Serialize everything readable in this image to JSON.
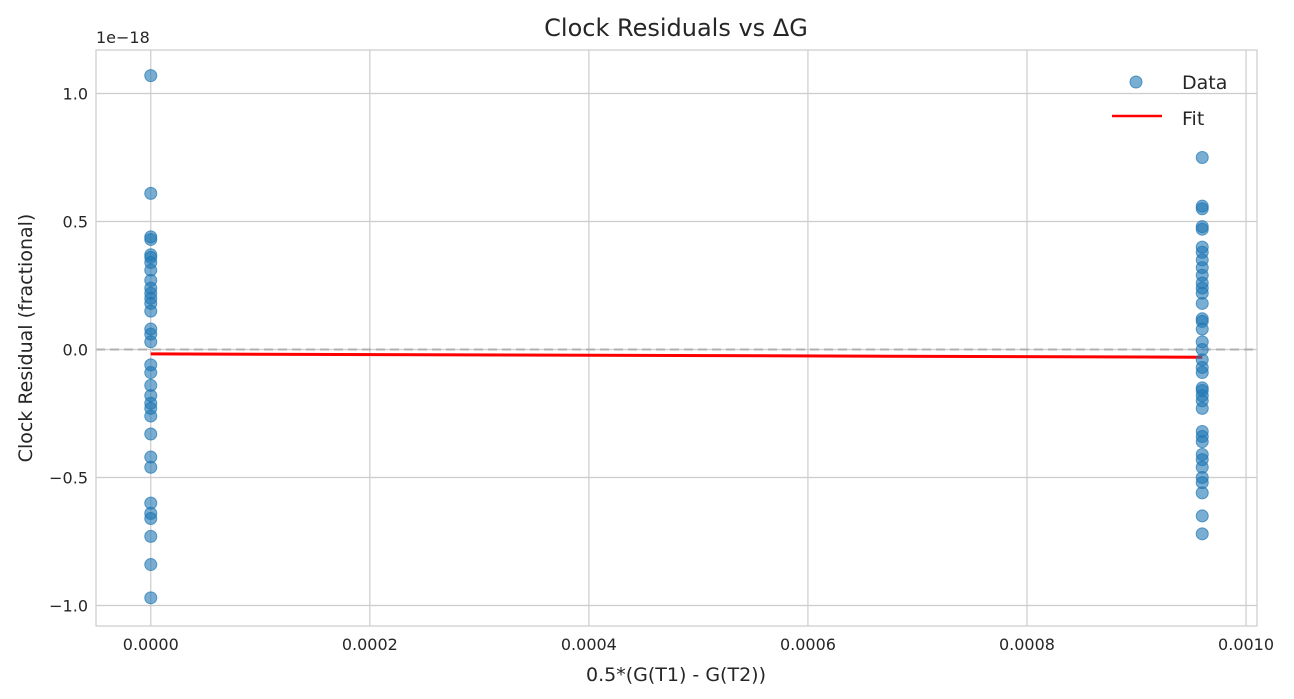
{
  "chart_data": {
    "type": "scatter",
    "title": "Clock Residuals vs ΔG",
    "xlabel": "0.5*(G(T1) - G(T2))",
    "ylabel": "Clock Residual (fractional)",
    "y_offset_label": "1e−18",
    "xlim": [
      -5e-05,
      0.00101
    ],
    "ylim": [
      -1.08,
      1.17
    ],
    "x_ticks": [
      0,
      0.0002,
      0.0004,
      0.0006,
      0.0008,
      0.001
    ],
    "x_tick_labels": [
      "0.0000",
      "0.0002",
      "0.0004",
      "0.0006",
      "0.0008",
      "0.0010"
    ],
    "y_ticks": [
      -1.0,
      -0.5,
      0.0,
      0.5,
      1.0
    ],
    "y_tick_labels": [
      "−1.0",
      "−0.5",
      "0.0",
      "0.5",
      "1.0"
    ],
    "grid": true,
    "legend_position": "top-right",
    "zero_line": {
      "y": 0,
      "style": "dashed",
      "color": "#b0b0b0"
    },
    "series": [
      {
        "name": "Data",
        "kind": "scatter",
        "color": "#1f77b4",
        "points": [
          [
            0,
            1.07
          ],
          [
            0,
            0.61
          ],
          [
            0,
            0.44
          ],
          [
            0,
            0.43
          ],
          [
            0,
            0.37
          ],
          [
            0,
            0.36
          ],
          [
            0,
            0.34
          ],
          [
            0,
            0.31
          ],
          [
            0,
            0.27
          ],
          [
            0,
            0.24
          ],
          [
            0,
            0.22
          ],
          [
            0,
            0.2
          ],
          [
            0,
            0.18
          ],
          [
            0,
            0.15
          ],
          [
            0,
            0.08
          ],
          [
            0,
            0.06
          ],
          [
            0,
            0.03
          ],
          [
            0,
            -0.06
          ],
          [
            0,
            -0.09
          ],
          [
            0,
            -0.14
          ],
          [
            0,
            -0.18
          ],
          [
            0,
            -0.21
          ],
          [
            0,
            -0.23
          ],
          [
            0,
            -0.26
          ],
          [
            0,
            -0.33
          ],
          [
            0,
            -0.42
          ],
          [
            0,
            -0.46
          ],
          [
            0,
            -0.6
          ],
          [
            0,
            -0.64
          ],
          [
            0,
            -0.66
          ],
          [
            0,
            -0.73
          ],
          [
            0,
            -0.84
          ],
          [
            0,
            -0.97
          ],
          [
            0.00096,
            0.75
          ],
          [
            0.00096,
            0.56
          ],
          [
            0.00096,
            0.55
          ],
          [
            0.00096,
            0.48
          ],
          [
            0.00096,
            0.47
          ],
          [
            0.00096,
            0.4
          ],
          [
            0.00096,
            0.38
          ],
          [
            0.00096,
            0.35
          ],
          [
            0.00096,
            0.32
          ],
          [
            0.00096,
            0.29
          ],
          [
            0.00096,
            0.26
          ],
          [
            0.00096,
            0.24
          ],
          [
            0.00096,
            0.22
          ],
          [
            0.00096,
            0.18
          ],
          [
            0.00096,
            0.12
          ],
          [
            0.00096,
            0.11
          ],
          [
            0.00096,
            0.08
          ],
          [
            0.00096,
            0.03
          ],
          [
            0.00096,
            0.0
          ],
          [
            0.00096,
            -0.04
          ],
          [
            0.00096,
            -0.07
          ],
          [
            0.00096,
            -0.09
          ],
          [
            0.00096,
            -0.15
          ],
          [
            0.00096,
            -0.16
          ],
          [
            0.00096,
            -0.18
          ],
          [
            0.00096,
            -0.2
          ],
          [
            0.00096,
            -0.23
          ],
          [
            0.00096,
            -0.32
          ],
          [
            0.00096,
            -0.34
          ],
          [
            0.00096,
            -0.36
          ],
          [
            0.00096,
            -0.41
          ],
          [
            0.00096,
            -0.43
          ],
          [
            0.00096,
            -0.46
          ],
          [
            0.00096,
            -0.5
          ],
          [
            0.00096,
            -0.52
          ],
          [
            0.00096,
            -0.56
          ],
          [
            0.00096,
            -0.65
          ],
          [
            0.00096,
            -0.72
          ]
        ]
      },
      {
        "name": "Fit",
        "kind": "line",
        "color": "#ff0000",
        "points": [
          [
            0,
            -0.017
          ],
          [
            0.00096,
            -0.03
          ]
        ]
      }
    ]
  }
}
